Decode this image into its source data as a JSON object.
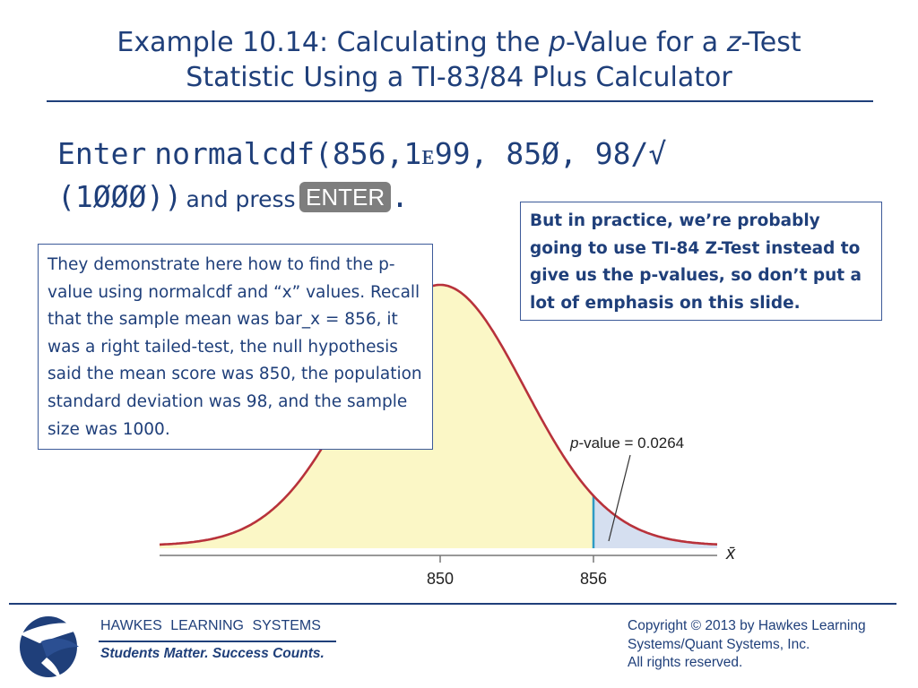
{
  "slide": {
    "title_line1": [
      "Example 10.14: Calculating the ",
      "p",
      "-Value for a ",
      "z",
      "-Test"
    ],
    "title_line2": "Statistic Using a TI-83/84 Plus Calculator"
  },
  "instruction": {
    "enter_word": "Enter",
    "command_line1": "normalcdf(856,1ᴇ99, 85Ø, 98/√",
    "command_line2": "(1ØØØ))",
    "and_press": "and press",
    "key_label": "ENTER",
    "period": "."
  },
  "note_left": "They demonstrate here how to find the p-value using normalcdf and “x” values. Recall that the sample mean was bar_x = 856, it was a right tailed-test, the null hypothesis said the mean score was 850, the population standard deviation was 98, and the sample size was 1000.",
  "note_right": "But in practice, we’re probably going to use TI-84 Z-Test instead to give us the p-values, so don’t put a lot of emphasis on this slide.",
  "chart_data": {
    "type": "area",
    "distribution": "normal",
    "mean": 850,
    "sample_mean": 856,
    "shaded_tail": "right",
    "axis_label": "x̄",
    "ticks": [
      850,
      856
    ],
    "annotation_prefix": "p",
    "annotation_suffix": "-value = 0.0264",
    "p_value": 0.0264,
    "colors": {
      "curve": "#b8323b",
      "body_fill": "#fbf7c6",
      "tail_fill": "#d5dff0",
      "cut_line": "#2e9bc4",
      "axis": "#777777"
    }
  },
  "footer": {
    "brand": "HAWKES LEARNING SYSTEMS",
    "tagline": "Students Matter. Success Counts.",
    "copyright_lines": [
      "Copyright © 2013 by Hawkes Learning",
      "Systems/Quant Systems, Inc.",
      "All rights reserved."
    ],
    "logo_icon": "eagle-icon",
    "accent_color": "#1f3f7a"
  }
}
